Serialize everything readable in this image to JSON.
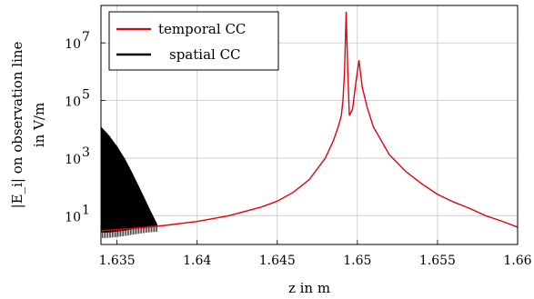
{
  "chart_data": {
    "type": "line",
    "xlabel": "z in m",
    "ylabel_line1": "|E_i| on observation line",
    "ylabel_line2": "in V/m",
    "xlim": [
      1.634,
      1.66
    ],
    "ylim": [
      1,
      200000000
    ],
    "yscale": "log",
    "grid": true,
    "legend_position": "top-left",
    "x_ticks": [
      1.635,
      1.64,
      1.645,
      1.65,
      1.655,
      1.66
    ],
    "x_tick_labels": [
      "1.635",
      "1.64",
      "1.645",
      "1.65",
      "1.655",
      "1.66"
    ],
    "y_ticks": [
      10,
      1000,
      100000,
      10000000
    ],
    "y_tick_labels": [
      {
        "base": "10",
        "exp": "1"
      },
      {
        "base": "10",
        "exp": "3"
      },
      {
        "base": "10",
        "exp": "5"
      },
      {
        "base": "10",
        "exp": "7"
      }
    ],
    "series": [
      {
        "name": "temporal CC",
        "color": "#e8000b",
        "points": [
          [
            1.634,
            3
          ],
          [
            1.636,
            3.6
          ],
          [
            1.638,
            4.6
          ],
          [
            1.64,
            6.3
          ],
          [
            1.642,
            10
          ],
          [
            1.644,
            20
          ],
          [
            1.645,
            32
          ],
          [
            1.646,
            65
          ],
          [
            1.647,
            180
          ],
          [
            1.648,
            1000
          ],
          [
            1.6485,
            4000
          ],
          [
            1.6488,
            12000
          ],
          [
            1.649,
            30000
          ],
          [
            1.6491,
            100000
          ],
          [
            1.6492,
            1000000
          ],
          [
            1.6493,
            120000000
          ],
          [
            1.6494,
            1000000
          ],
          [
            1.6495,
            30000
          ],
          [
            1.6497,
            50000
          ],
          [
            1.6499,
            400000
          ],
          [
            1.6501,
            2500000
          ],
          [
            1.6503,
            300000
          ],
          [
            1.6506,
            60000
          ],
          [
            1.651,
            12000
          ],
          [
            1.652,
            1300
          ],
          [
            1.653,
            350
          ],
          [
            1.654,
            130
          ],
          [
            1.655,
            55
          ],
          [
            1.656,
            30
          ],
          [
            1.657,
            18
          ],
          [
            1.658,
            10
          ],
          [
            1.659,
            6.5
          ],
          [
            1.66,
            4
          ]
        ]
      },
      {
        "name": "spatial CC",
        "color": "#000000",
        "upper": [
          [
            1.634,
            12000
          ],
          [
            1.6345,
            6000
          ],
          [
            1.635,
            2500
          ],
          [
            1.6355,
            900
          ],
          [
            1.636,
            260
          ],
          [
            1.6365,
            70
          ],
          [
            1.637,
            18
          ],
          [
            1.6375,
            5
          ]
        ],
        "lower": [
          [
            1.634,
            3
          ],
          [
            1.6345,
            3.1
          ],
          [
            1.635,
            3.3
          ],
          [
            1.6355,
            3.6
          ],
          [
            1.636,
            4
          ],
          [
            1.6365,
            4.4
          ],
          [
            1.637,
            4.8
          ],
          [
            1.6375,
            5
          ]
        ]
      }
    ]
  }
}
